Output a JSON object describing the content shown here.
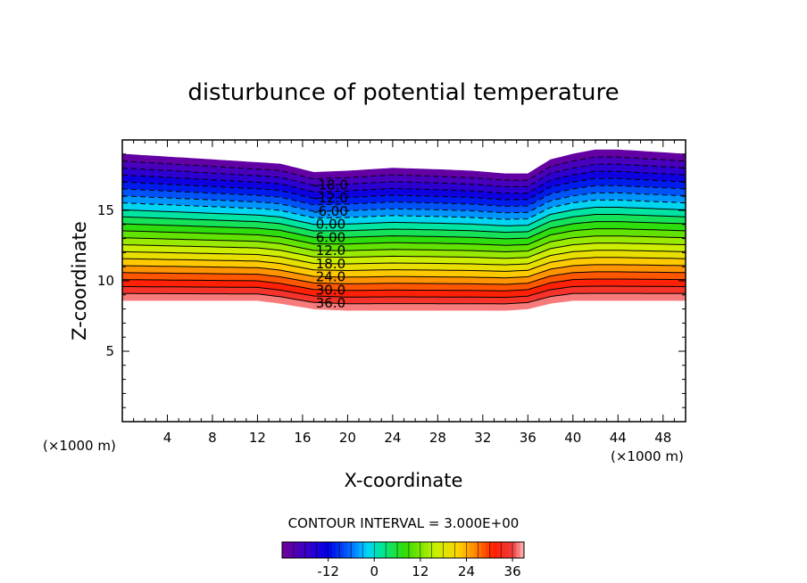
{
  "chart_data": {
    "type": "contour",
    "title": "disturbunce of potential temperature",
    "xlabel": "X-coordinate",
    "ylabel": "Z-coordinate",
    "x_unit": "(×1000 m)",
    "y_unit": "(×1000 m)",
    "xlim": [
      0,
      50
    ],
    "ylim": [
      0,
      20
    ],
    "x_ticks": [
      "4",
      "8",
      "12",
      "16",
      "20",
      "24",
      "28",
      "32",
      "36",
      "40",
      "44",
      "48"
    ],
    "y_ticks": [
      "5",
      "10",
      "15"
    ],
    "contour_interval_text": "CONTOUR INTERVAL = 3.000E+00",
    "contour_interval": 3,
    "value_range": [
      -24,
      39
    ],
    "dashed_for_negative": true,
    "contour_labels": [
      "-18.0",
      "-12.0",
      "-6.00",
      "0.00",
      "6.00",
      "12.0",
      "18.0",
      "24.0",
      "30.0",
      "36.0"
    ],
    "surface_profile": {
      "x": [
        0,
        12,
        14,
        17,
        20,
        24,
        28,
        31,
        34,
        36,
        38,
        40,
        42,
        44,
        46,
        48,
        50
      ],
      "bottom_z": [
        8.6,
        8.6,
        8.4,
        8.0,
        7.9,
        7.9,
        7.9,
        7.9,
        7.9,
        8.0,
        8.4,
        8.6,
        8.6,
        8.6,
        8.6,
        8.6,
        8.6
      ],
      "top_z": [
        19.0,
        18.4,
        18.3,
        17.7,
        17.8,
        18.0,
        17.9,
        17.8,
        17.6,
        17.6,
        18.6,
        19.0,
        19.3,
        19.3,
        19.2,
        19.1,
        19.0
      ]
    },
    "colorbar": {
      "tick_labels": [
        "-12",
        "0",
        "12",
        "24",
        "36"
      ],
      "tick_values": [
        -12,
        0,
        12,
        24,
        36
      ]
    }
  }
}
